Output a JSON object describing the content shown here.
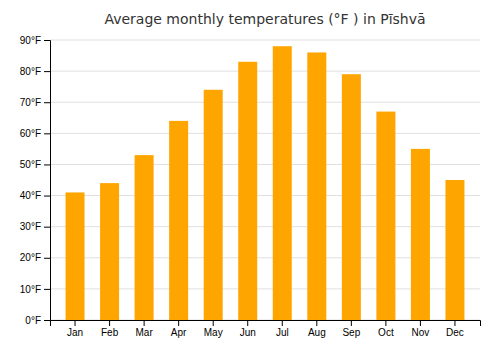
{
  "chart_data": {
    "type": "bar",
    "title": "Average monthly temperatures (°F ) in Pīshvā",
    "categories": [
      "Jan",
      "Feb",
      "Mar",
      "Apr",
      "May",
      "Jun",
      "Jul",
      "Aug",
      "Sep",
      "Oct",
      "Nov",
      "Dec"
    ],
    "values": [
      41,
      44,
      53,
      64,
      74,
      83,
      88,
      86,
      79,
      67,
      55,
      45
    ],
    "color": "#FFA500",
    "ylim": [
      0,
      90
    ],
    "yticks": [
      {
        "value": 0,
        "label": "0°F"
      },
      {
        "value": 10,
        "label": "10°F"
      },
      {
        "value": 20,
        "label": "20°F"
      },
      {
        "value": 30,
        "label": "30°F"
      },
      {
        "value": 40,
        "label": "40°F"
      },
      {
        "value": 50,
        "label": "50°F"
      },
      {
        "value": 60,
        "label": "60°F"
      },
      {
        "value": 70,
        "label": "70°F"
      },
      {
        "value": 80,
        "label": "80°F"
      },
      {
        "value": 90,
        "label": "90°F"
      }
    ],
    "grid": true
  }
}
